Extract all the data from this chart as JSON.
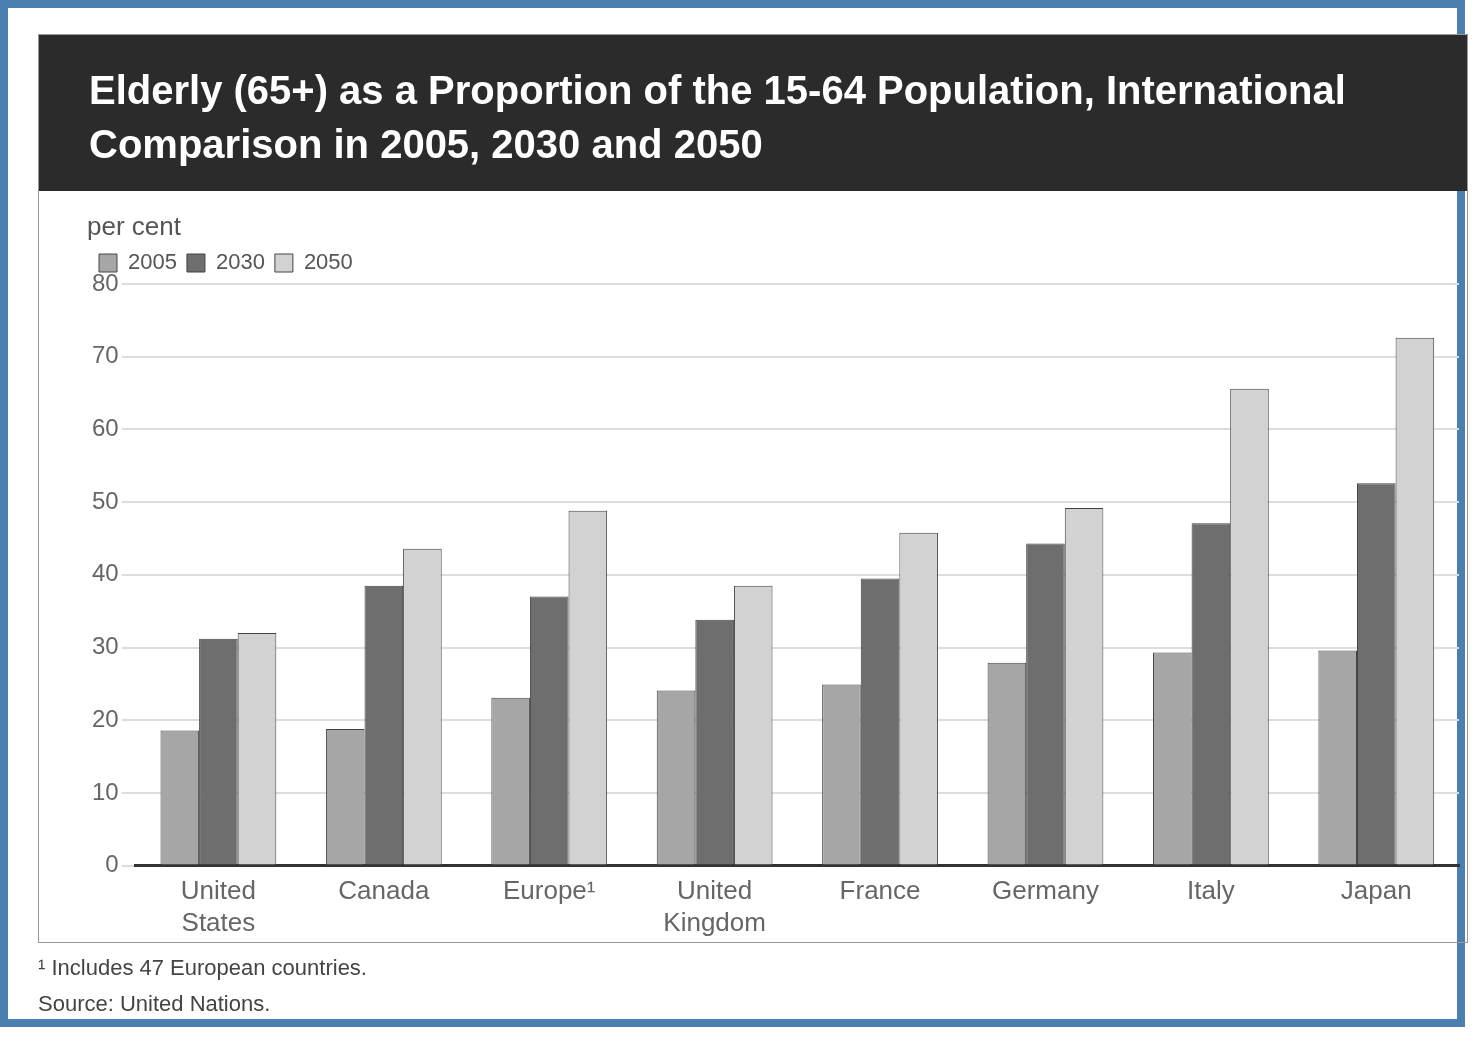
{
  "chart_data": {
    "type": "bar",
    "title": "Elderly (65+) as a Proportion of the 15-64 Population, International Comparison in 2005, 2030 and 2050",
    "ylabel": "per cent",
    "categories": [
      "United States",
      "Canada",
      "Europe¹",
      "United Kingdom",
      "France",
      "Germany",
      "Italy",
      "Japan"
    ],
    "series": [
      {
        "name": "2005",
        "color": "#a6a6a6",
        "values": [
          18.6,
          18.8,
          23.1,
          24.1,
          24.9,
          27.9,
          29.3,
          29.6
        ]
      },
      {
        "name": "2030",
        "color": "#6e6e6e",
        "values": [
          31.2,
          38.5,
          37.0,
          33.8,
          39.5,
          44.3,
          47.1,
          52.6
        ]
      },
      {
        "name": "2050",
        "color": "#d2d2d2",
        "values": [
          32.0,
          43.6,
          48.8,
          38.5,
          45.8,
          49.2,
          65.6,
          72.6
        ]
      }
    ],
    "ylim": [
      0,
      80
    ],
    "yticks": [
      0,
      10,
      20,
      30,
      40,
      50,
      60,
      70,
      80
    ],
    "grid": "y",
    "legend": "top left",
    "annotations": [
      "¹ Includes 47 European countries.",
      "Source: United Nations."
    ]
  }
}
